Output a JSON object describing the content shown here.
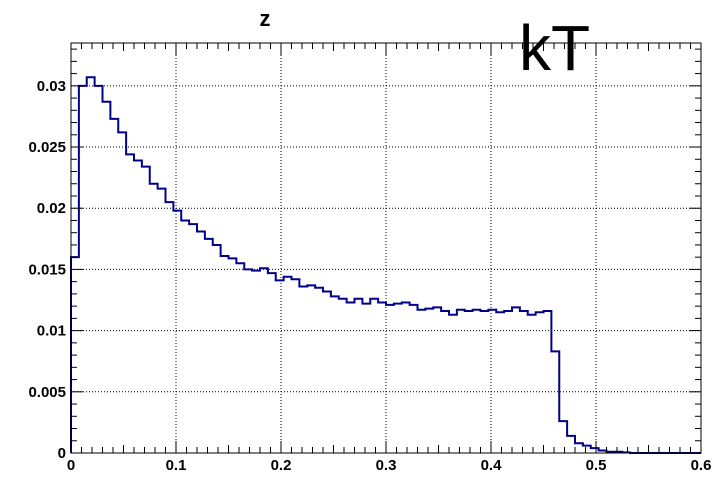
{
  "chart_data": {
    "type": "histogram",
    "title": "z",
    "annotation": "kT",
    "xlabel": "",
    "ylabel": "",
    "xlim": [
      0,
      0.6
    ],
    "ylim": [
      0,
      0.0335
    ],
    "grid": true,
    "x_ticks": [
      0,
      0.1,
      0.2,
      0.3,
      0.4,
      0.5,
      0.6
    ],
    "x_tick_labels": [
      "0",
      "0.1",
      "0.2",
      "0.3",
      "0.4",
      "0.5",
      "0.6"
    ],
    "y_ticks": [
      0,
      0.005,
      0.01,
      0.015,
      0.02,
      0.025,
      0.03
    ],
    "y_tick_labels": [
      "0",
      "0.005",
      "0.01",
      "0.015",
      "0.02",
      "0.025",
      "0.03"
    ],
    "bin_width": 0.0075,
    "series": [
      {
        "color": "#00008b",
        "x_start": 0.0,
        "values": [
          0.016,
          0.03,
          0.0307,
          0.03,
          0.0287,
          0.0273,
          0.0262,
          0.0244,
          0.0239,
          0.0234,
          0.022,
          0.0216,
          0.0205,
          0.0198,
          0.019,
          0.0187,
          0.0181,
          0.0175,
          0.017,
          0.0161,
          0.0159,
          0.0155,
          0.015,
          0.0149,
          0.0151,
          0.0147,
          0.0141,
          0.0144,
          0.0142,
          0.0136,
          0.0137,
          0.0135,
          0.0132,
          0.0128,
          0.0126,
          0.0123,
          0.0126,
          0.0122,
          0.0126,
          0.0123,
          0.0121,
          0.0122,
          0.0123,
          0.0121,
          0.0117,
          0.0118,
          0.0119,
          0.0116,
          0.0113,
          0.0117,
          0.0116,
          0.0117,
          0.0116,
          0.0117,
          0.0115,
          0.0116,
          0.0119,
          0.0116,
          0.0113,
          0.0115,
          0.0116,
          0.0083,
          0.0026,
          0.0014,
          0.0008,
          0.0006,
          0.0004,
          0.0002,
          0.0001,
          0.0001,
          5e-05,
          0.0,
          0.0,
          0.0,
          0.0,
          0.0,
          0.0,
          0.0,
          0.0,
          0.0
        ]
      }
    ]
  }
}
